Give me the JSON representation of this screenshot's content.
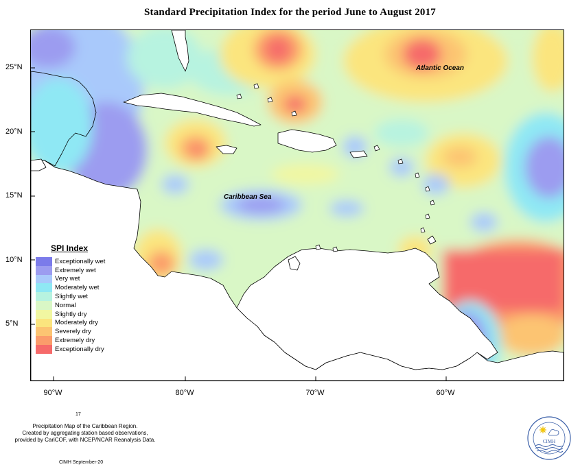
{
  "title": "Standard Precipitation Index for the period June to August 2017",
  "map": {
    "ocean_labels": {
      "atlantic": "Atlantic Ocean",
      "caribbean": "Caribbean Sea"
    },
    "y_ticks": [
      "25°N",
      "20°N",
      "15°N",
      "10°N",
      "5°N"
    ],
    "x_ticks": [
      "90°W",
      "80°W",
      "70°W",
      "60°W"
    ],
    "colors": {
      "background": "#d9f7c6",
      "land": "#ffffff",
      "coast": "#000000"
    }
  },
  "legend": {
    "title": "SPI Index",
    "items": [
      {
        "label": "Exceptionally wet",
        "color": "#7b7bea"
      },
      {
        "label": "Extremely wet",
        "color": "#9c9cf0"
      },
      {
        "label": "Very wet",
        "color": "#a9c9fb"
      },
      {
        "label": "Moderately wet",
        "color": "#8fe8f4"
      },
      {
        "label": "Slightly wet",
        "color": "#b7f3e0"
      },
      {
        "label": "Normal",
        "color": "#d9f7c6"
      },
      {
        "label": "Slightly dry",
        "color": "#f1f7a1"
      },
      {
        "label": "Moderately dry",
        "color": "#fbe57e"
      },
      {
        "label": "Severely dry",
        "color": "#fcc472"
      },
      {
        "label": "Extremely dry",
        "color": "#fb9c6b"
      },
      {
        "label": "Exceptionally dry",
        "color": "#f66a6a"
      }
    ]
  },
  "footer": {
    "page_number": "17",
    "line1": "Precipitation Map of the Caribbean Region.",
    "line2": "Created by aggregating station based observations,",
    "line3": "provided by CariCOF, with NCEP/NCAR Reanalysis Data.",
    "credit": "CIMH September-20",
    "logo_text": "CIMH"
  }
}
